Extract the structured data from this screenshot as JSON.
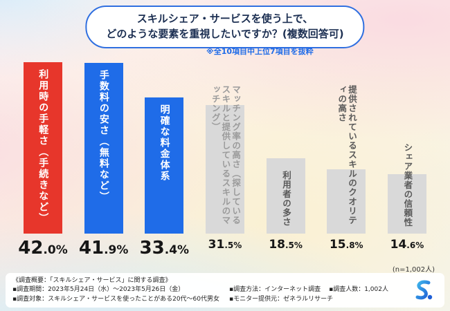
{
  "title": {
    "line1": "スキルシェア・サービスを使う上で、",
    "line2": "どのような要素を重視したいですか？(複数回答可)"
  },
  "note": "※全10項目中上位7項目を抜粋",
  "sample_note": "(n=1,002人)",
  "colors": {
    "accent_red": "#e7362b",
    "accent_blue": "#1f6ce8",
    "bar_gray": "#d9d9d9",
    "title_border": "#2f6fe0"
  },
  "chart_data": {
    "type": "bar",
    "title": "スキルシェア・サービスを使う上で、どのような要素を重視したいですか？(複数回答可)",
    "subtitle": "※全10項目中上位7項目を抜粋",
    "ylim": [
      0,
      45
    ],
    "grid": false,
    "legend": false,
    "categories": [
      "利用時の手軽さ（手続きなど）",
      "手数料の安さ（無料など）",
      "明確な料金体系",
      "マッチング率の高さ（探しているスキルと提供しているスキルのマッチング）",
      "利用者の多さ",
      "提供されているスキルのクオリティの高さ",
      "シェア業者の信頼性"
    ],
    "values": [
      42.0,
      41.9,
      33.4,
      31.5,
      18.5,
      15.8,
      14.6
    ],
    "bars": [
      {
        "label": "利用時の手軽さ（手続きなど）",
        "value": 42.0,
        "display": "42.0%",
        "bar_color": "#e7362b",
        "label_color": "#ffffff",
        "highlighted": true
      },
      {
        "label": "手数料の安さ（無料など）",
        "value": 41.9,
        "display": "41.9%",
        "bar_color": "#1f6ce8",
        "label_color": "#ffffff",
        "highlighted": true
      },
      {
        "label": "明確な料金体系",
        "value": 33.4,
        "display": "33.4%",
        "bar_color": "#1f6ce8",
        "label_color": "#ffffff",
        "highlighted": true
      },
      {
        "label": "マッチング率の高さ（探しているスキルと提供しているスキルのマッチング）",
        "value": 31.5,
        "display": "31.5%",
        "bar_color": "#d9d9d9",
        "label_color": "#9b9b9b",
        "highlighted": false
      },
      {
        "label": "利用者の多さ",
        "value": 18.5,
        "display": "18.5%",
        "bar_color": "#d9d9d9",
        "label_color": "#595959",
        "highlighted": false
      },
      {
        "label": "提供されているスキルのクオリティの高さ",
        "value": 15.8,
        "display": "15.8%",
        "bar_color": "#d9d9d9",
        "label_color": "#595959",
        "highlighted": false
      },
      {
        "label": "シェア業者の信頼性",
        "value": 14.6,
        "display": "14.6%",
        "bar_color": "#d9d9d9",
        "label_color": "#595959",
        "highlighted": false
      }
    ]
  },
  "footer": {
    "heading": "《調査概要：「スキルシェア・サービス」に関する調査》",
    "left": [
      "▪調査期間：2023年5月24日（水）～2023年5月26日（金）",
      "▪調査対象：スキルシェア・サービスを使ったことがある20代～60代男女"
    ],
    "right": [
      "▪調査方法：インターネット調査",
      "▪調査人数：1,002人",
      "▪モニター提供元：ゼネラルリサーチ"
    ]
  },
  "logo": {
    "name": "s-logo"
  }
}
